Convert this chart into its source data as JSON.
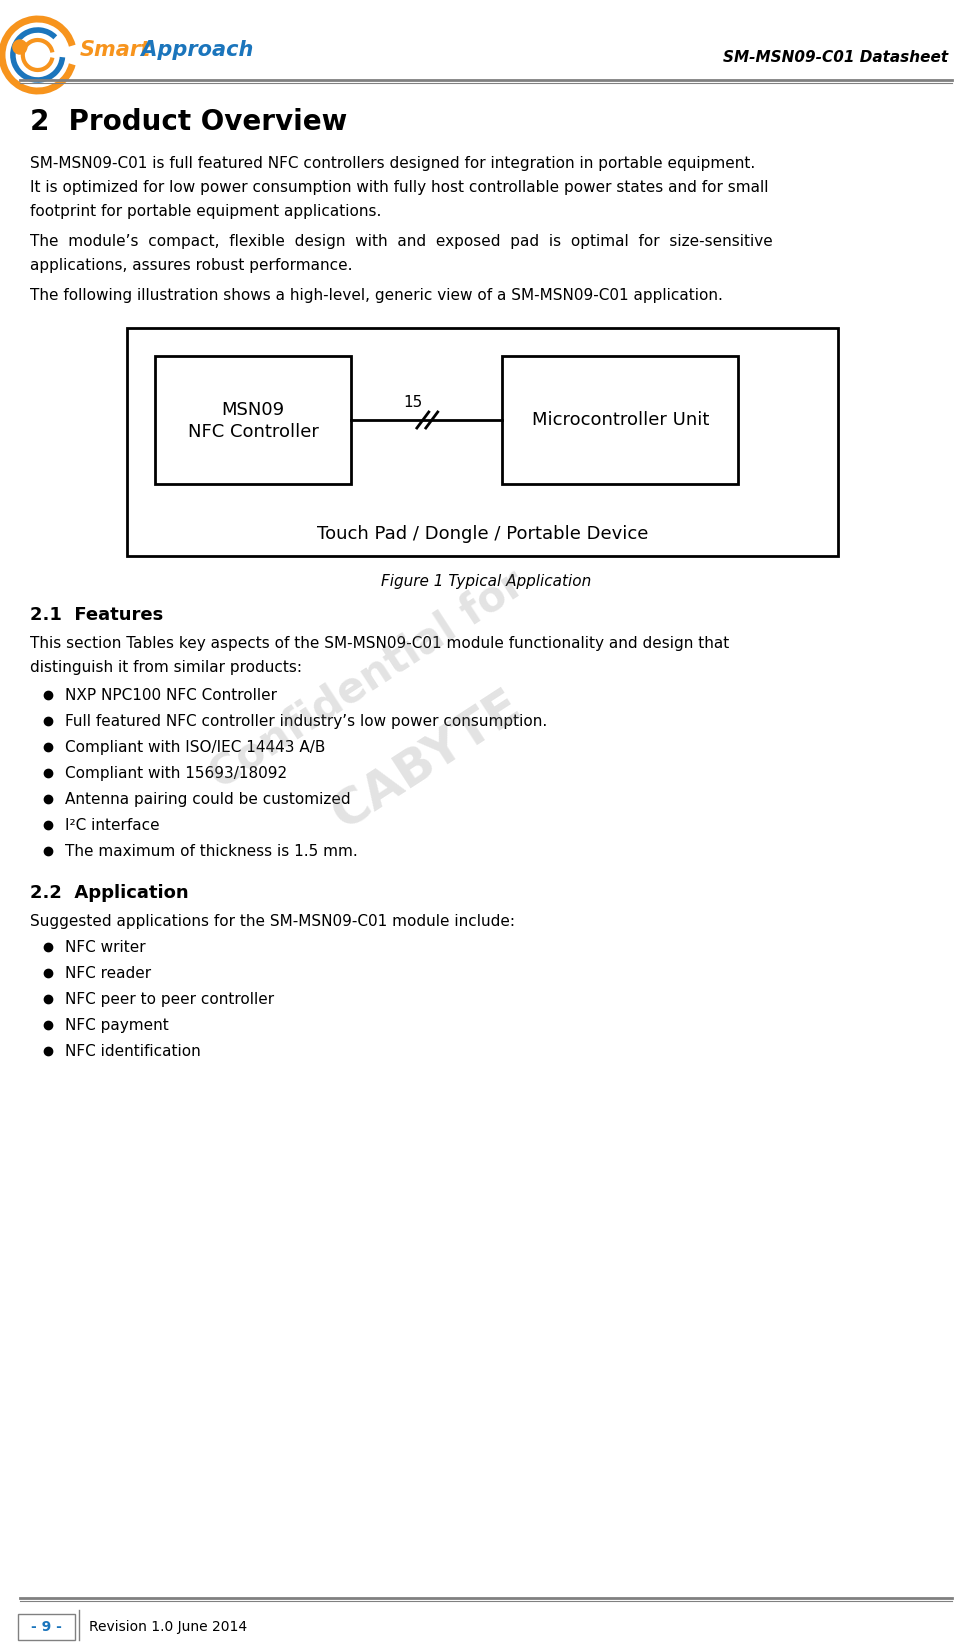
{
  "title_header": "SM-MSN09-C01 Datasheet",
  "section_title": "2  Product Overview",
  "para1_lines": [
    "SM-MSN09-C01 is full featured NFC controllers designed for integration in portable equipment.",
    "It is optimized for low power consumption with fully host controllable power states and for small",
    "footprint for portable equipment applications."
  ],
  "para2_line1": "The  module’s  compact,  flexible  design  with  and  exposed  pad  is  optimal  for  size-sensitive",
  "para2_line2": "applications, assures robust performance.",
  "para3": "The following illustration shows a high-level, generic view of a SM-MSN09-C01 application.",
  "figure_caption": "Figure 1 Typical Application",
  "box_nfc_label1": "MSN09",
  "box_nfc_label2": "NFC Controller",
  "box_mcu_label": "Microcontroller Unit",
  "bus_label": "15",
  "outer_box_label": "Touch Pad / Dongle / Portable Device",
  "section21": "2.1  Features",
  "para21_lines": [
    "This section Tables key aspects of the SM-MSN09-C01 module functionality and design that",
    "distinguish it from similar products:"
  ],
  "bullets21": [
    "NXP NPC100 NFC Controller",
    "Full featured NFC controller industry’s low power consumption.",
    "Compliant with ISO/IEC 14443 A/B",
    "Compliant with 15693/18092",
    "Antenna pairing could be customized",
    "I²C interface",
    "The maximum of thickness is 1.5 mm."
  ],
  "section22": "2.2  Application",
  "para22": "Suggested applications for the SM-MSN09-C01 module include:",
  "bullets22": [
    "NFC writer",
    "NFC reader",
    "NFC peer to peer controller",
    "NFC payment",
    "NFC identification"
  ],
  "footer_page": "- 9 -",
  "footer_rev": "Revision 1.0 June 2014",
  "watermark": "Confidential for",
  "watermark2": "CABYTE",
  "bg_color": "#ffffff",
  "text_color": "#000000",
  "header_line_color": "#808080",
  "footer_line_color": "#808080",
  "orange_color": "#F7941D",
  "blue_color": "#1B75BC"
}
